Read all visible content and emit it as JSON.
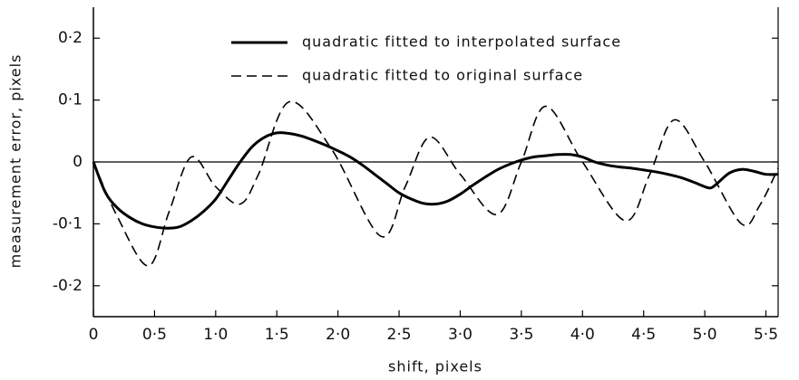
{
  "chart_data": {
    "type": "line",
    "xlabel": "shift, pixels",
    "ylabel": "measurement error, pixels",
    "xlim": [
      0,
      5.6
    ],
    "ylim": [
      -0.25,
      0.25
    ],
    "xticks": [
      0,
      {
        "value": 0.5,
        "label": "0·5"
      },
      {
        "value": 1.0,
        "label": "1·0"
      },
      {
        "value": 1.5,
        "label": "1·5"
      },
      {
        "value": 2.0,
        "label": "2·0"
      },
      {
        "value": 2.5,
        "label": "2·5"
      },
      {
        "value": 3.0,
        "label": "3·0"
      },
      {
        "value": 3.5,
        "label": "3·5"
      },
      {
        "value": 4.0,
        "label": "4·0"
      },
      {
        "value": 4.5,
        "label": "4·5"
      },
      {
        "value": 5.0,
        "label": "5·0"
      },
      {
        "value": 5.5,
        "label": "5·5"
      }
    ],
    "yticks": [
      {
        "value": -0.2,
        "label": "-0·2"
      },
      {
        "value": -0.1,
        "label": "-0·1"
      },
      0,
      {
        "value": 0.1,
        "label": "0·1"
      },
      {
        "value": 0.2,
        "label": "0·2"
      }
    ],
    "zero_line": true,
    "legend": "upper right",
    "series": [
      {
        "name": "quadratic fitted to interpolated surface",
        "color": "#000000",
        "dash": "solid",
        "x": [
          0,
          0.1,
          0.2,
          0.3,
          0.4,
          0.5,
          0.6,
          0.7,
          0.8,
          0.9,
          1.0,
          1.1,
          1.2,
          1.3,
          1.4,
          1.5,
          1.6,
          1.7,
          1.8,
          1.9,
          2.0,
          2.1,
          2.2,
          2.3,
          2.4,
          2.5,
          2.6,
          2.7,
          2.8,
          2.9,
          3.0,
          3.1,
          3.2,
          3.3,
          3.4,
          3.5,
          3.6,
          3.7,
          3.8,
          3.9,
          4.0,
          4.1,
          4.2,
          4.3,
          4.4,
          4.5,
          4.6,
          4.7,
          4.8,
          4.9,
          5.0,
          5.05,
          5.1,
          5.2,
          5.3,
          5.4,
          5.5,
          5.6
        ],
        "values": [
          0,
          -0.05,
          -0.075,
          -0.09,
          -0.1,
          -0.105,
          -0.107,
          -0.105,
          -0.095,
          -0.08,
          -0.06,
          -0.03,
          0,
          0.025,
          0.04,
          0.047,
          0.046,
          0.042,
          0.035,
          0.027,
          0.018,
          0.008,
          -0.005,
          -0.02,
          -0.035,
          -0.05,
          -0.06,
          -0.067,
          -0.068,
          -0.063,
          -0.052,
          -0.038,
          -0.025,
          -0.013,
          -0.004,
          0.003,
          0.008,
          0.01,
          0.012,
          0.012,
          0.008,
          0.0,
          -0.005,
          -0.008,
          -0.01,
          -0.013,
          -0.016,
          -0.02,
          -0.025,
          -0.032,
          -0.04,
          -0.042,
          -0.035,
          -0.018,
          -0.012,
          -0.015,
          -0.02,
          -0.02
        ]
      },
      {
        "name": "quadratic fitted to original surface",
        "color": "#000000",
        "dash": "dashed",
        "x": [
          0,
          0.2,
          0.45,
          0.62,
          0.8,
          1.0,
          1.2,
          1.35,
          1.6,
          1.95,
          2.35,
          2.55,
          2.75,
          3.0,
          3.3,
          3.5,
          3.7,
          4.0,
          4.35,
          4.55,
          4.75,
          5.0,
          5.3,
          5.45,
          5.6
        ],
        "values": [
          0,
          -0.09,
          -0.168,
          -0.08,
          0.008,
          -0.04,
          -0.068,
          -0.02,
          0.097,
          0.02,
          -0.12,
          -0.04,
          0.04,
          -0.02,
          -0.085,
          0.0,
          0.09,
          0.0,
          -0.095,
          -0.02,
          0.068,
          0.0,
          -0.1,
          -0.07,
          -0.01
        ]
      }
    ]
  }
}
